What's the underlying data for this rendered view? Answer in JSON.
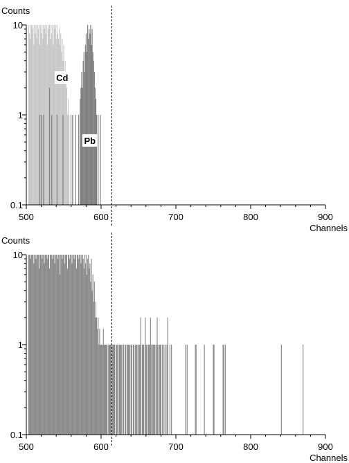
{
  "chart_data": [
    {
      "type": "bar",
      "ylabel": "Counts",
      "xlabel": "Channels",
      "yscale": "log",
      "xlim": [
        500,
        900
      ],
      "ylim": [
        0.1,
        10
      ],
      "xticks": [
        "500",
        "600",
        "700",
        "800",
        "900"
      ],
      "yticks": [
        "0.1",
        "1",
        "10"
      ],
      "marker_line_x": 614,
      "colors": {
        "cd": "#c8c8c8",
        "pb": "#808080",
        "axis": "#000000"
      },
      "annotations": [
        {
          "text": "Cd",
          "x": 548,
          "y": 2.6
        },
        {
          "text": "Pb",
          "x": 585,
          "y": 0.52
        }
      ],
      "series": [
        {
          "name": "Cd",
          "bins": [
            [
              503,
              10
            ],
            [
              504,
              8
            ],
            [
              505,
              10
            ],
            [
              506,
              7
            ],
            [
              507,
              10
            ],
            [
              508,
              9
            ],
            [
              509,
              10
            ],
            [
              510,
              6
            ],
            [
              511,
              10
            ],
            [
              512,
              8
            ],
            [
              513,
              10
            ],
            [
              514,
              7
            ],
            [
              515,
              10
            ],
            [
              516,
              9
            ],
            [
              517,
              10
            ],
            [
              518,
              6
            ],
            [
              519,
              10
            ],
            [
              520,
              8
            ],
            [
              521,
              10
            ],
            [
              522,
              7
            ],
            [
              523,
              10
            ],
            [
              524,
              9
            ],
            [
              525,
              10
            ],
            [
              526,
              8
            ],
            [
              527,
              10
            ],
            [
              528,
              6
            ],
            [
              529,
              10
            ],
            [
              530,
              9
            ],
            [
              531,
              10
            ],
            [
              532,
              7
            ],
            [
              533,
              10
            ],
            [
              534,
              8
            ],
            [
              535,
              10
            ],
            [
              536,
              6
            ],
            [
              537,
              10
            ],
            [
              538,
              9
            ],
            [
              539,
              10
            ],
            [
              540,
              7
            ],
            [
              541,
              10
            ],
            [
              542,
              8
            ],
            [
              543,
              7
            ],
            [
              544,
              9
            ],
            [
              545,
              6
            ],
            [
              546,
              8
            ],
            [
              547,
              5
            ],
            [
              548,
              7
            ],
            [
              549,
              4
            ],
            [
              550,
              6
            ],
            [
              551,
              3
            ],
            [
              552,
              4
            ],
            [
              553,
              2.5
            ],
            [
              554,
              2
            ],
            [
              555,
              1
            ],
            [
              556,
              1.5
            ],
            [
              557,
              1
            ],
            [
              559,
              1
            ],
            [
              561,
              1
            ]
          ]
        },
        {
          "name": "Pb",
          "bins": [
            [
              518,
              1
            ],
            [
              520,
              1
            ],
            [
              523,
              1
            ],
            [
              531,
              2
            ],
            [
              534,
              1
            ],
            [
              541,
              1
            ],
            [
              549,
              1
            ],
            [
              562,
              1
            ],
            [
              566,
              1
            ],
            [
              570,
              1
            ],
            [
              572,
              1.5
            ],
            [
              573,
              2
            ],
            [
              574,
              3
            ],
            [
              575,
              2
            ],
            [
              576,
              4
            ],
            [
              577,
              5
            ],
            [
              578,
              3
            ],
            [
              579,
              6
            ],
            [
              580,
              8
            ],
            [
              581,
              5
            ],
            [
              582,
              10
            ],
            [
              583,
              7
            ],
            [
              584,
              9
            ],
            [
              585,
              8
            ],
            [
              586,
              10
            ],
            [
              587,
              6
            ],
            [
              588,
              9
            ],
            [
              589,
              5
            ],
            [
              590,
              4
            ],
            [
              591,
              3
            ],
            [
              592,
              2
            ],
            [
              593,
              1.5
            ],
            [
              594,
              1
            ],
            [
              596,
              1
            ],
            [
              599,
              1
            ]
          ]
        }
      ]
    },
    {
      "type": "bar",
      "ylabel": "Counts",
      "xlabel": "Channels",
      "yscale": "log",
      "xlim": [
        500,
        900
      ],
      "ylim": [
        0.1,
        10
      ],
      "xticks": [
        "500",
        "600",
        "700",
        "800",
        "900"
      ],
      "yticks": [
        "0.1",
        "1",
        "10"
      ],
      "marker_line_x": 614,
      "colors": {
        "bars": "#8c8c8c",
        "axis": "#000000"
      },
      "series": [
        {
          "name": "",
          "bins": [
            [
              503,
              10
            ],
            [
              504,
              10
            ],
            [
              505,
              10
            ],
            [
              506,
              9
            ],
            [
              507,
              10
            ],
            [
              508,
              10
            ],
            [
              509,
              10
            ],
            [
              510,
              8
            ],
            [
              511,
              10
            ],
            [
              512,
              10
            ],
            [
              513,
              9
            ],
            [
              514,
              10
            ],
            [
              515,
              10
            ],
            [
              516,
              10
            ],
            [
              517,
              7
            ],
            [
              518,
              10
            ],
            [
              519,
              10
            ],
            [
              520,
              10
            ],
            [
              521,
              9
            ],
            [
              522,
              10
            ],
            [
              523,
              10
            ],
            [
              524,
              8
            ],
            [
              525,
              10
            ],
            [
              526,
              10
            ],
            [
              527,
              10
            ],
            [
              528,
              9
            ],
            [
              529,
              10
            ],
            [
              530,
              10
            ],
            [
              531,
              7
            ],
            [
              532,
              10
            ],
            [
              533,
              10
            ],
            [
              534,
              10
            ],
            [
              535,
              9
            ],
            [
              536,
              10
            ],
            [
              537,
              10
            ],
            [
              538,
              8
            ],
            [
              539,
              10
            ],
            [
              540,
              10
            ],
            [
              541,
              10
            ],
            [
              542,
              9
            ],
            [
              543,
              10
            ],
            [
              544,
              10
            ],
            [
              545,
              6
            ],
            [
              546,
              10
            ],
            [
              547,
              10
            ],
            [
              548,
              9
            ],
            [
              549,
              10
            ],
            [
              550,
              10
            ],
            [
              551,
              8
            ],
            [
              552,
              10
            ],
            [
              553,
              10
            ],
            [
              554,
              10
            ],
            [
              555,
              7
            ],
            [
              556,
              10
            ],
            [
              557,
              10
            ],
            [
              558,
              9
            ],
            [
              559,
              10
            ],
            [
              560,
              10
            ],
            [
              561,
              8
            ],
            [
              562,
              10
            ],
            [
              563,
              10
            ],
            [
              564,
              9
            ],
            [
              565,
              10
            ],
            [
              566,
              10
            ],
            [
              567,
              7
            ],
            [
              568,
              10
            ],
            [
              569,
              10
            ],
            [
              570,
              9
            ],
            [
              571,
              10
            ],
            [
              572,
              10
            ],
            [
              573,
              8
            ],
            [
              574,
              10
            ],
            [
              575,
              10
            ],
            [
              576,
              9
            ],
            [
              577,
              7
            ],
            [
              578,
              10
            ],
            [
              579,
              8
            ],
            [
              580,
              10
            ],
            [
              581,
              6
            ],
            [
              582,
              9
            ],
            [
              583,
              10
            ],
            [
              584,
              7
            ],
            [
              585,
              8
            ],
            [
              586,
              5
            ],
            [
              587,
              9
            ],
            [
              588,
              4
            ],
            [
              589,
              6
            ],
            [
              590,
              3
            ],
            [
              591,
              5
            ],
            [
              592,
              2
            ],
            [
              593,
              3
            ],
            [
              594,
              2
            ],
            [
              595,
              1.5
            ],
            [
              596,
              2
            ],
            [
              597,
              1
            ],
            [
              598,
              1.5
            ],
            [
              599,
              1
            ],
            [
              600,
              1
            ],
            [
              601,
              1
            ],
            [
              602,
              1
            ],
            [
              603,
              1.5
            ],
            [
              604,
              1
            ],
            [
              605,
              1
            ],
            [
              606,
              1
            ],
            [
              607,
              1
            ],
            [
              608,
              1
            ],
            [
              610,
              1
            ],
            [
              611,
              1
            ],
            [
              612,
              1
            ],
            [
              613,
              1
            ],
            [
              615,
              1
            ],
            [
              616,
              1
            ],
            [
              617,
              1
            ],
            [
              618,
              1
            ],
            [
              620,
              1
            ],
            [
              621,
              1
            ],
            [
              622,
              1
            ],
            [
              624,
              1
            ],
            [
              625,
              1
            ],
            [
              626,
              1
            ],
            [
              627,
              1
            ],
            [
              629,
              1
            ],
            [
              630,
              1
            ],
            [
              632,
              1
            ],
            [
              633,
              1
            ],
            [
              635,
              1
            ],
            [
              636,
              1
            ],
            [
              637,
              1
            ],
            [
              638,
              1
            ],
            [
              640,
              1
            ],
            [
              641,
              1
            ],
            [
              643,
              1
            ],
            [
              644,
              1
            ],
            [
              646,
              1
            ],
            [
              647,
              1
            ],
            [
              648,
              1
            ],
            [
              650,
              1
            ],
            [
              651,
              1
            ],
            [
              652,
              1
            ],
            [
              653,
              2
            ],
            [
              655,
              1
            ],
            [
              656,
              1
            ],
            [
              657,
              1
            ],
            [
              659,
              2
            ],
            [
              660,
              1
            ],
            [
              661,
              1
            ],
            [
              663,
              1
            ],
            [
              664,
              1
            ],
            [
              665,
              1
            ],
            [
              666,
              2
            ],
            [
              667,
              1
            ],
            [
              669,
              1
            ],
            [
              670,
              1
            ],
            [
              671,
              1
            ],
            [
              672,
              1
            ],
            [
              674,
              1
            ],
            [
              675,
              2
            ],
            [
              676,
              1
            ],
            [
              678,
              1
            ],
            [
              679,
              1
            ],
            [
              680,
              1
            ],
            [
              682,
              1
            ],
            [
              684,
              1
            ],
            [
              686,
              1
            ],
            [
              688,
              1
            ],
            [
              689,
              2
            ],
            [
              692,
              1
            ],
            [
              694,
              1
            ],
            [
              713,
              1
            ],
            [
              715,
              1
            ],
            [
              726,
              1
            ],
            [
              727,
              1
            ],
            [
              738,
              1
            ],
            [
              750,
              1
            ],
            [
              751,
              1
            ],
            [
              763,
              1
            ],
            [
              764,
              1
            ],
            [
              766,
              1
            ],
            [
              841,
              1
            ],
            [
              870,
              1
            ]
          ]
        }
      ]
    }
  ]
}
